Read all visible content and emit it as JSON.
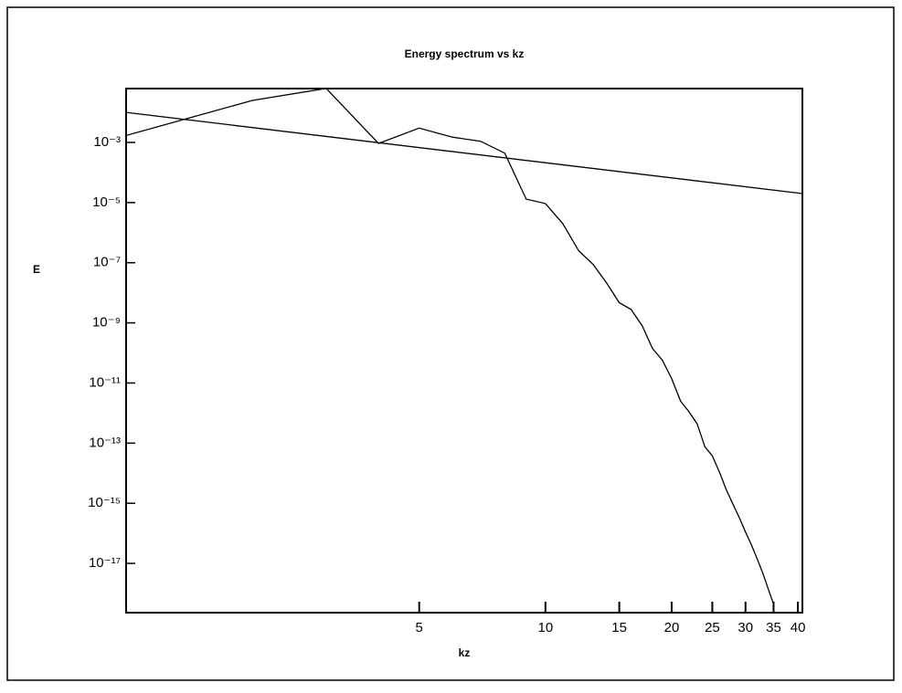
{
  "chart_data": {
    "type": "line",
    "title": "Energy spectrum vs kz",
    "xlabel": "kz",
    "ylabel": "E",
    "xscale": "log",
    "yscale": "log",
    "xlim": [
      1,
      41
    ],
    "ylim": [
      2.3e-19,
      0.062
    ],
    "xticks": [
      5,
      10,
      15,
      20,
      25,
      30,
      35,
      40
    ],
    "yticks": [
      {
        "value": 0.001,
        "label": "10⁻³"
      },
      {
        "value": 1e-05,
        "label": "10⁻⁵"
      },
      {
        "value": 1e-07,
        "label": "10⁻⁷"
      },
      {
        "value": 1e-09,
        "label": "10⁻⁹"
      },
      {
        "value": 1e-11,
        "label": "10⁻¹¹"
      },
      {
        "value": 1e-13,
        "label": "10⁻¹³"
      },
      {
        "value": 1e-15,
        "label": "10⁻¹⁵"
      },
      {
        "value": 1e-17,
        "label": "10⁻¹⁷"
      }
    ],
    "series": [
      {
        "color": "#000000",
        "x": [
          1,
          2,
          3,
          4,
          5,
          6,
          7,
          8,
          9,
          10,
          11,
          12,
          13,
          14,
          15,
          16,
          17,
          18,
          19,
          20,
          21,
          22,
          23,
          24,
          25,
          26,
          27,
          28,
          29,
          30,
          31,
          32,
          33,
          34,
          35
        ],
        "values": [
          0.0017,
          0.025,
          0.063,
          0.00093,
          0.003,
          0.0015,
          0.0011,
          0.00044,
          1.3e-05,
          9.3e-06,
          2e-06,
          2.5e-07,
          8.7e-08,
          2.1e-08,
          4.7e-09,
          2.8e-09,
          8.1e-10,
          1.4e-10,
          5.8e-11,
          1.4e-11,
          2.5e-12,
          1.1e-12,
          4.4e-13,
          7.6e-14,
          3.8e-14,
          1.1e-14,
          2.8e-15,
          9.3e-16,
          3.3e-16,
          1.1e-16,
          4.1e-17,
          1.4e-17,
          4.7e-18,
          1.4e-18,
          4.4e-19
        ]
      },
      {
        "color": "#000000",
        "x": [
          1,
          41
        ],
        "values": [
          0.01,
          2e-05
        ]
      }
    ]
  }
}
